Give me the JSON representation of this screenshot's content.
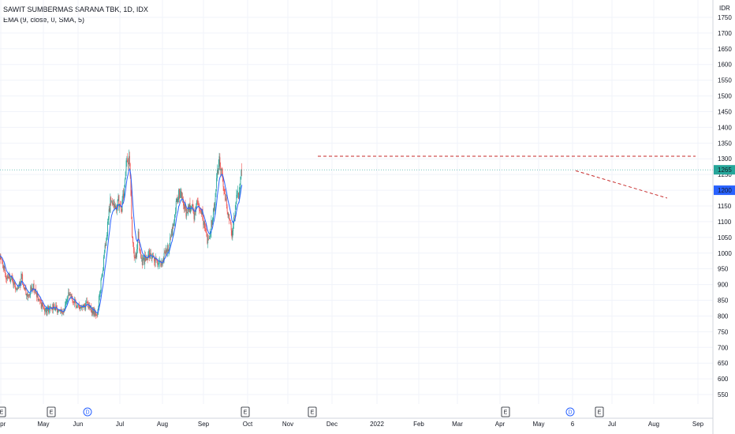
{
  "header": {
    "title": "SAWIT SUMBERMAS SARANA TBK, 1D, IDX",
    "indicator": "EMA (9, close, 0, SMA, 5)"
  },
  "chart_data": {
    "type": "candlestick",
    "unit": "IDR",
    "y_ticks": [
      1750,
      1700,
      1650,
      1600,
      1550,
      1500,
      1450,
      1400,
      1350,
      1300,
      1250,
      1200,
      1150,
      1100,
      1050,
      1000,
      950,
      900,
      850,
      800,
      750,
      700,
      650,
      600,
      550
    ],
    "y_ticks_display": [
      "1750",
      "1700",
      "1650",
      "1600",
      "1550",
      "1500",
      "1450",
      "1400",
      "1350",
      "1300",
      "1250",
      "1200",
      "1150",
      "1100",
      "1050",
      "1000",
      "950",
      "900",
      "850",
      "800",
      "750",
      "700",
      "650",
      "600",
      "550"
    ],
    "ylim": [
      525,
      1770
    ],
    "x_labels": [
      "Apr",
      "May",
      "Jun",
      "Jul",
      "Aug",
      "Sep",
      "Oct",
      "Nov",
      "Dec",
      "2022",
      "Feb",
      "Mar",
      "Apr",
      "May",
      "6",
      "Jul",
      "Aug",
      "Sep"
    ],
    "price_labels": [
      {
        "value": 1265,
        "text": "1265",
        "color": "#26a69a"
      },
      {
        "value": 1200,
        "text": "1200",
        "color": "#2962ff"
      }
    ],
    "key_points": [
      [
        0,
        980
      ],
      [
        5,
        960
      ],
      [
        10,
        915
      ],
      [
        16,
        925
      ],
      [
        22,
        895
      ],
      [
        28,
        885
      ],
      [
        32,
        925
      ],
      [
        38,
        880
      ],
      [
        42,
        862
      ],
      [
        50,
        905
      ],
      [
        58,
        850
      ],
      [
        64,
        828
      ],
      [
        70,
        815
      ],
      [
        78,
        832
      ],
      [
        85,
        822
      ],
      [
        90,
        810
      ],
      [
        95,
        815
      ],
      [
        102,
        870
      ],
      [
        108,
        855
      ],
      [
        114,
        832
      ],
      [
        119,
        828
      ],
      [
        125,
        830
      ],
      [
        131,
        835
      ],
      [
        138,
        822
      ],
      [
        143,
        808
      ],
      [
        147,
        815
      ],
      [
        150,
        878
      ],
      [
        154,
        935
      ],
      [
        158,
        1020
      ],
      [
        162,
        1090
      ],
      [
        166,
        1165
      ],
      [
        170,
        1155
      ],
      [
        174,
        1140
      ],
      [
        178,
        1170
      ],
      [
        182,
        1130
      ],
      [
        186,
        1190
      ],
      [
        190,
        1280
      ],
      [
        194,
        1300
      ],
      [
        196,
        1230
      ],
      [
        197,
        1170
      ],
      [
        199,
        1040
      ],
      [
        202,
        1000
      ],
      [
        205,
        985
      ],
      [
        208,
        1060
      ],
      [
        211,
        995
      ],
      [
        214,
        975
      ],
      [
        220,
        985
      ],
      [
        226,
        1000
      ],
      [
        232,
        975
      ],
      [
        238,
        965
      ],
      [
        244,
        975
      ],
      [
        250,
        1000
      ],
      [
        255,
        1030
      ],
      [
        260,
        1080
      ],
      [
        264,
        1140
      ],
      [
        268,
        1180
      ],
      [
        272,
        1195
      ],
      [
        276,
        1160
      ],
      [
        280,
        1130
      ],
      [
        284,
        1140
      ],
      [
        288,
        1150
      ],
      [
        292,
        1115
      ],
      [
        296,
        1150
      ],
      [
        300,
        1140
      ],
      [
        304,
        1125
      ],
      [
        308,
        1075
      ],
      [
        312,
        1040
      ],
      [
        316,
        1060
      ],
      [
        320,
        1120
      ],
      [
        324,
        1180
      ],
      [
        327,
        1250
      ],
      [
        330,
        1315
      ],
      [
        333,
        1260
      ],
      [
        337,
        1215
      ],
      [
        341,
        1140
      ],
      [
        345,
        1100
      ],
      [
        349,
        1060
      ],
      [
        351,
        1080
      ],
      [
        354,
        1150
      ],
      [
        357,
        1200
      ],
      [
        360,
        1180
      ],
      [
        362,
        1250
      ],
      [
        364,
        1265
      ]
    ],
    "ema_period": 9,
    "resistance": {
      "value": 1308
    },
    "trendline": {
      "start_value": 1262,
      "end_value": 1175
    },
    "events": [
      {
        "bar": 0,
        "type": "E"
      },
      {
        "bar": 30,
        "type": "E"
      },
      {
        "bar": 52,
        "type": "D"
      },
      {
        "bar": 146,
        "type": "E"
      },
      {
        "bar": 185,
        "type": "E"
      },
      {
        "bar": 300,
        "type": "E"
      },
      {
        "bar": 338,
        "type": "D"
      },
      {
        "bar": 355,
        "type": "E"
      }
    ]
  }
}
